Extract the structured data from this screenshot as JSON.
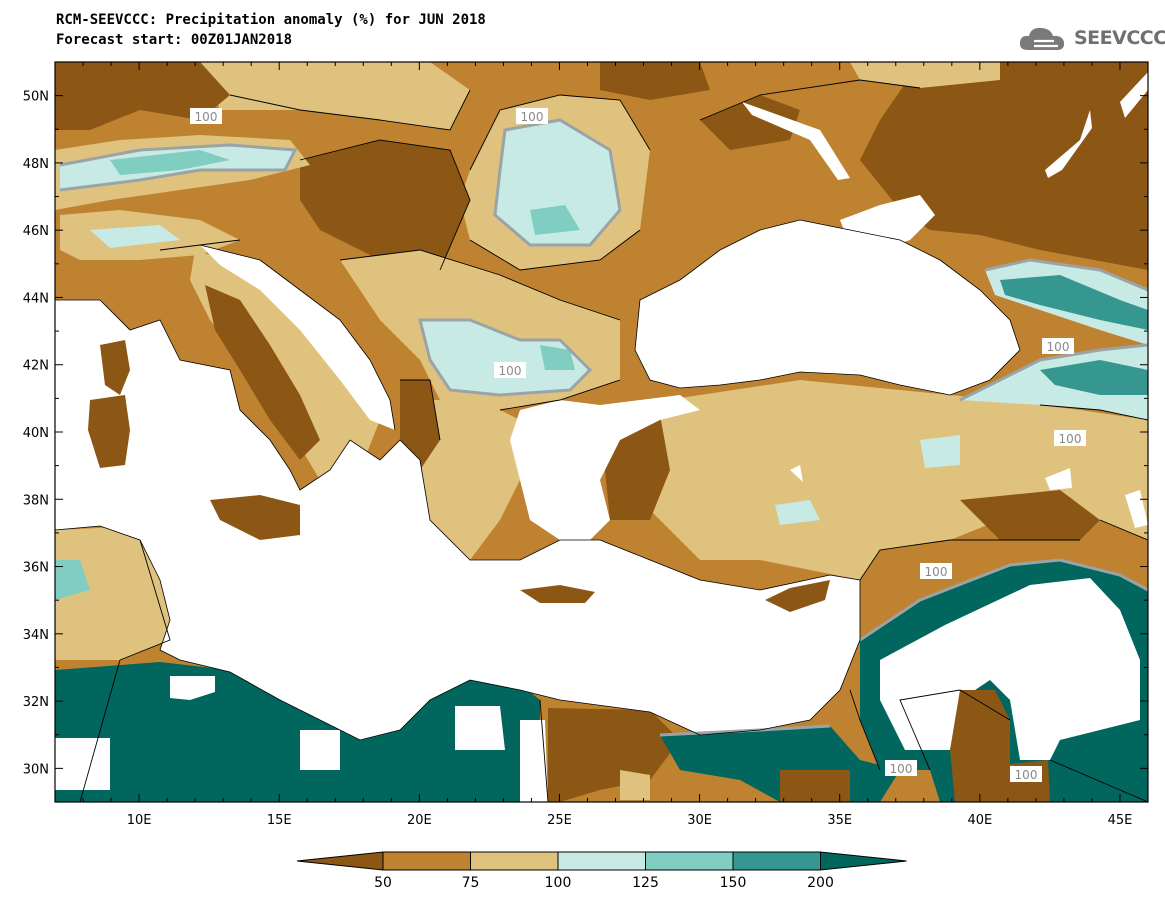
{
  "title_line1": "RCM-SEEVCCC: Precipitation anomaly (%) for JUN 2018",
  "title_line2": "Forecast start: 00Z01JAN2018",
  "logo": {
    "text": "SEEVCCC",
    "icon": "cloud-icon"
  },
  "colors": {
    "sea": "#ffffff",
    "dry_lt50": "#8c5614",
    "c50_75": "#bf8230",
    "c75_100": "#dfc27d",
    "c100_125": "#c7eae5",
    "c125_150": "#80cdc1",
    "c150_200": "#35978f",
    "wet_gt200": "#01665e",
    "contour100": "#9aa4a6",
    "border": "#000000"
  },
  "chart_data": {
    "type": "heatmap",
    "variable": "Precipitation anomaly (%)",
    "x_ticks": [
      "10E",
      "15E",
      "20E",
      "25E",
      "30E",
      "35E",
      "40E",
      "45E"
    ],
    "y_ticks": [
      "50N",
      "48N",
      "46N",
      "44N",
      "42N",
      "40N",
      "38N",
      "36N",
      "34N",
      "32N",
      "30N"
    ],
    "xlim": [
      7,
      46
    ],
    "ylim": [
      29,
      51
    ],
    "contour_labels": [
      "100",
      "100",
      "100",
      "100",
      "100",
      "100",
      "100",
      "100"
    ],
    "colorbar": {
      "levels": [
        "50",
        "75",
        "100",
        "125",
        "150",
        "200"
      ],
      "extend": "both"
    }
  }
}
